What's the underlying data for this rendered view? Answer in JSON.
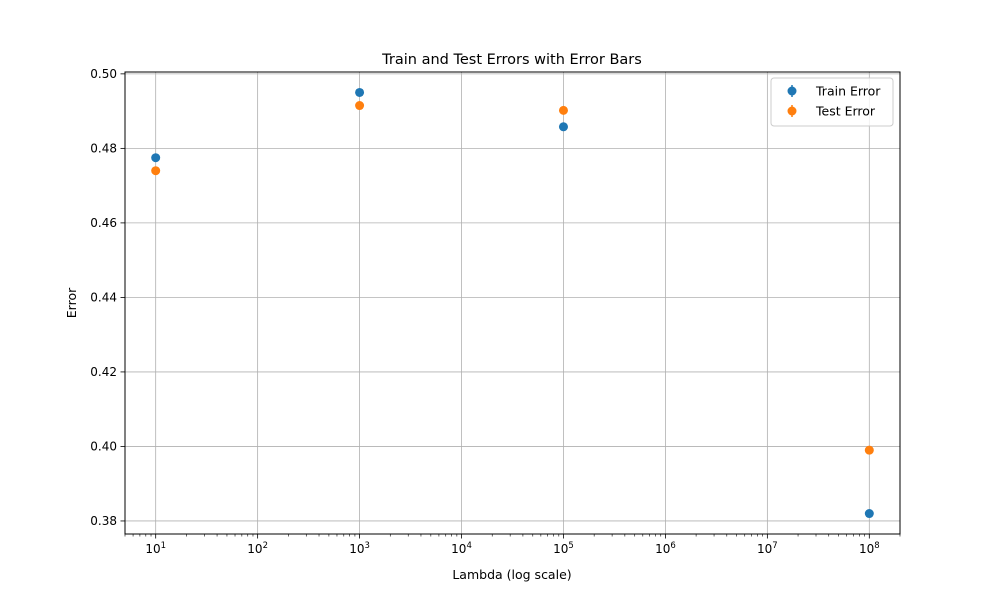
{
  "chart_data": {
    "type": "scatter",
    "title": "Train and Test Errors with Error Bars",
    "xlabel": "Lambda (log scale)",
    "ylabel": "Error",
    "xscale": "log",
    "xlim": [
      5,
      200000000
    ],
    "ylim": [
      0.3765,
      0.5005
    ],
    "x_ticks": [
      {
        "value": 10,
        "base": "10",
        "exp": "1"
      },
      {
        "value": 100,
        "base": "10",
        "exp": "2"
      },
      {
        "value": 1000,
        "base": "10",
        "exp": "3"
      },
      {
        "value": 10000,
        "base": "10",
        "exp": "4"
      },
      {
        "value": 100000,
        "base": "10",
        "exp": "5"
      },
      {
        "value": 1000000,
        "base": "10",
        "exp": "6"
      },
      {
        "value": 10000000,
        "base": "10",
        "exp": "7"
      },
      {
        "value": 100000000,
        "base": "10",
        "exp": "8"
      }
    ],
    "y_ticks": [
      {
        "value": 0.38,
        "label": "0.38"
      },
      {
        "value": 0.4,
        "label": "0.40"
      },
      {
        "value": 0.42,
        "label": "0.42"
      },
      {
        "value": 0.44,
        "label": "0.44"
      },
      {
        "value": 0.46,
        "label": "0.46"
      },
      {
        "value": 0.48,
        "label": "0.48"
      },
      {
        "value": 0.5,
        "label": "0.50"
      }
    ],
    "grid": true,
    "legend_position": "top-right",
    "series": [
      {
        "name": "Train Error",
        "color": "#1f77b4",
        "x": [
          10,
          1000,
          100000,
          100000000
        ],
        "y": [
          0.4775,
          0.495,
          0.4858,
          0.382
        ]
      },
      {
        "name": "Test Error",
        "color": "#ff7f0e",
        "x": [
          10,
          1000,
          100000,
          100000000
        ],
        "y": [
          0.474,
          0.4915,
          0.4902,
          0.399
        ]
      }
    ]
  }
}
